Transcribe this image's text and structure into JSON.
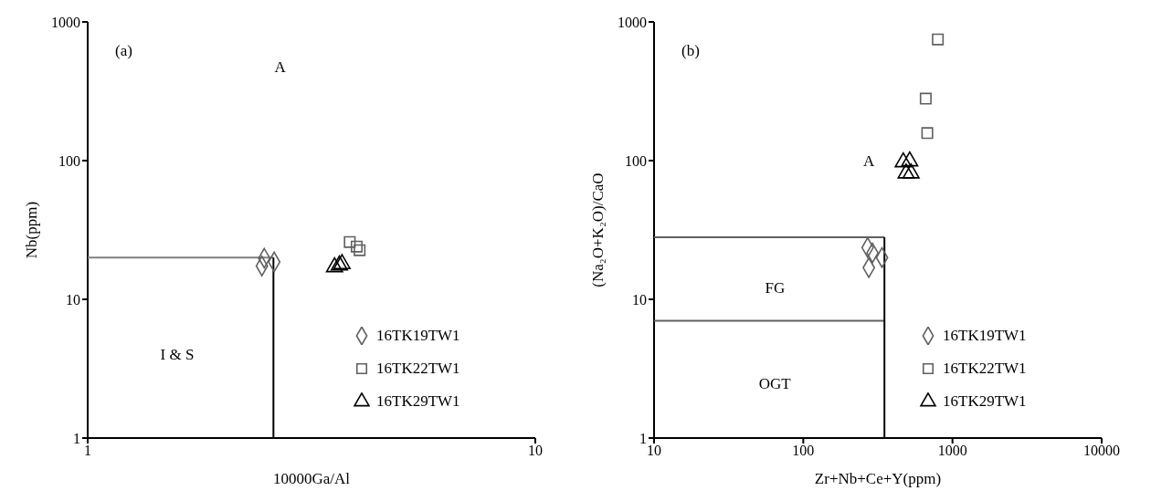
{
  "chart_data": [
    {
      "type": "scatter",
      "title": "(a)",
      "xlabel": "10000Ga/Al",
      "ylabel": "Nb(ppm)",
      "log": "xy",
      "xlim": [
        1,
        10
      ],
      "xticks": [
        1,
        10
      ],
      "ylim": [
        1,
        1000
      ],
      "yticks": [
        1,
        10,
        100,
        1000
      ],
      "legend": "bottom right",
      "annotations": [
        "A",
        "I & S"
      ],
      "series": [
        {
          "type": "line",
          "color": "#808080",
          "x": [
            1,
            2.6
          ],
          "values": [
            20,
            20
          ]
        },
        {
          "type": "line",
          "color": "#000000",
          "x": [
            2.6,
            2.6
          ],
          "values": [
            20,
            1
          ]
        },
        {
          "name": "16TK19TW1",
          "marker": "diamond",
          "color": "#606060",
          "x": [
            2.48,
            2.45,
            2.61
          ],
          "values": [
            19.8,
            17.4,
            18.6
          ]
        },
        {
          "name": "16TK22TW1",
          "marker": "square",
          "color": "#606060",
          "x": [
            3.85,
            3.99,
            4.05
          ],
          "values": [
            25.9,
            24,
            22.6
          ]
        },
        {
          "name": "16TK29TW1",
          "marker": "triangle",
          "color": "#000000",
          "x": [
            3.56,
            3.65,
            3.7
          ],
          "values": [
            17.1,
            17.6,
            18
          ]
        }
      ]
    },
    {
      "type": "scatter",
      "title": "(b)",
      "xlabel": "Zr+Nb+Ce+Y(ppm)",
      "ylabel": "(Na₂O+K₂O)/CaO",
      "log": "xy",
      "xlim": [
        10,
        10000
      ],
      "xticks": [
        10,
        100,
        1000,
        10000
      ],
      "ylim": [
        1,
        1000
      ],
      "yticks": [
        1,
        10,
        100,
        1000
      ],
      "legend": "bottom right",
      "annotations": [
        "A",
        "FG",
        "OGT"
      ],
      "series": [
        {
          "type": "line",
          "color": "#606060",
          "x": [
            10,
            350
          ],
          "values": [
            28,
            28
          ]
        },
        {
          "type": "line",
          "color": "#606060",
          "x": [
            10,
            350
          ],
          "values": [
            7,
            7
          ]
        },
        {
          "type": "line",
          "color": "#000000",
          "x": [
            350,
            350
          ],
          "values": [
            28,
            1
          ]
        },
        {
          "name": "16TK19TW1",
          "marker": "diamond",
          "color": "#606060",
          "x": [
            270,
            291,
            337,
            275
          ],
          "values": [
            23.6,
            21.6,
            20,
            16.9
          ]
        },
        {
          "name": "16TK22TW1",
          "marker": "square",
          "color": "#606060",
          "x": [
            798,
            662,
            678
          ],
          "values": [
            748,
            280,
            158
          ]
        },
        {
          "name": "16TK29TW1",
          "marker": "triangle",
          "color": "#000000",
          "x": [
            468,
            517,
            489,
            528
          ],
          "values": [
            97.5,
            99,
            81,
            81
          ]
        }
      ]
    }
  ]
}
